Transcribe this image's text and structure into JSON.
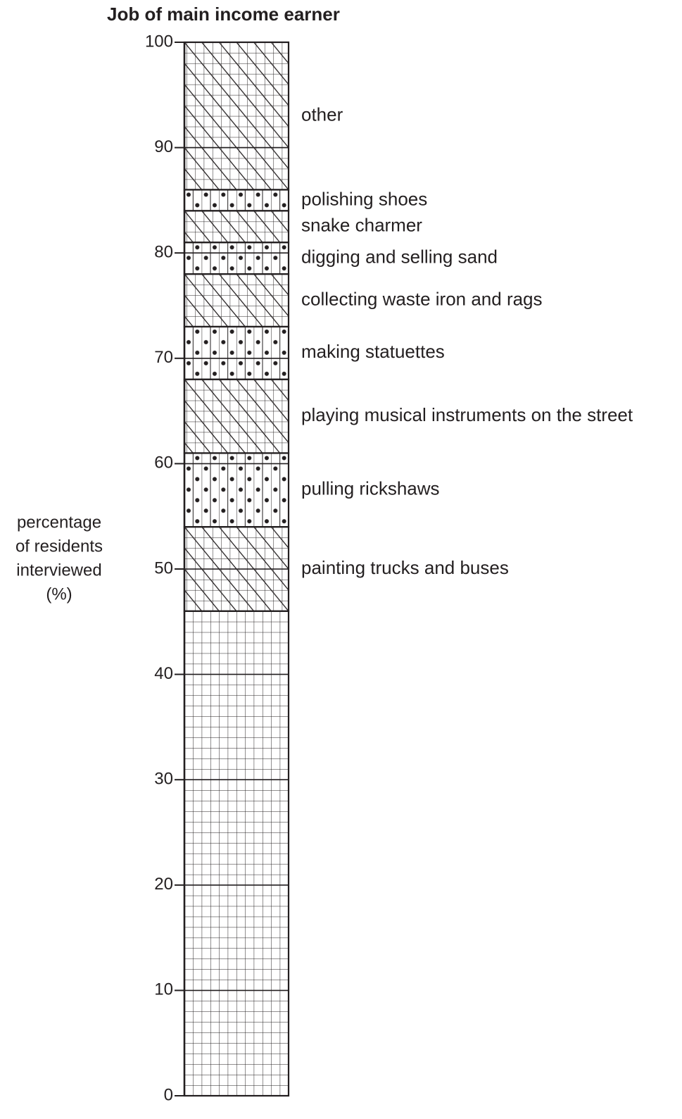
{
  "chart_data": {
    "type": "stacked_bar",
    "title": "Job of main income earner",
    "ylabel": [
      "percentage",
      "of residents",
      "interviewed",
      "(%)"
    ],
    "categories": [
      null,
      "painting trucks and buses",
      "pulling rickshaws",
      "playing musical instruments on the street",
      "making statuettes",
      "collecting waste iron and rags",
      "digging and selling sand",
      "snake charmer",
      "polishing shoes",
      "other"
    ],
    "values": [
      46,
      8,
      7,
      7,
      5,
      5,
      3,
      3,
      2,
      14
    ],
    "fills": [
      "grid",
      "hatch",
      "dots",
      "hatch",
      "dots",
      "hatch",
      "dots",
      "hatch",
      "dots",
      "hatch"
    ],
    "ylim": [
      0,
      100
    ],
    "yticks": [
      0,
      10,
      20,
      30,
      40,
      50,
      60,
      70,
      80,
      90,
      100
    ]
  }
}
